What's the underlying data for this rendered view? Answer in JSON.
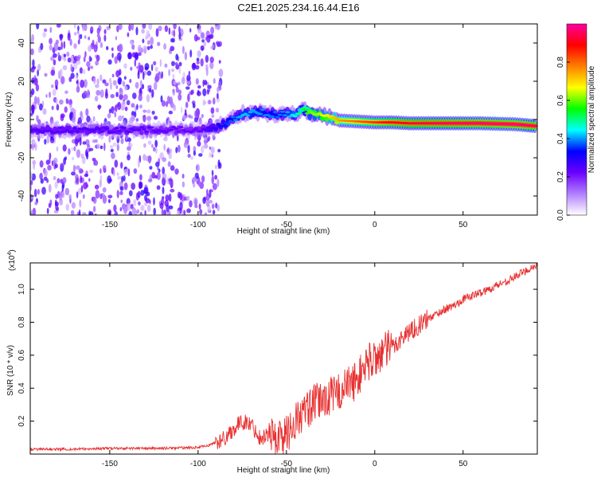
{
  "chart_data": [
    {
      "type": "heatmap",
      "title": "C2E1.2025.234.16.44.E16",
      "xlabel": "Height of straight line (km)",
      "ylabel": "Frequency (Hz)",
      "xlim": [
        -195,
        92
      ],
      "ylim": [
        -50,
        50
      ],
      "xticks": [
        -150,
        -100,
        -50,
        0,
        50
      ],
      "xtick_labels": [
        "-150",
        "-100",
        "-50",
        "0",
        "50"
      ],
      "yticks": [
        -40,
        -20,
        0,
        20,
        40
      ],
      "ytick_labels": [
        "-40",
        "-20",
        "0",
        "20",
        "40"
      ],
      "colorbar": {
        "label": "Normalized spectral amplitude",
        "range": [
          0,
          1
        ],
        "ticks": [
          0.0,
          0.2,
          0.4,
          0.6,
          0.8
        ],
        "tick_labels": [
          "0.0",
          "0.2",
          "0.4",
          "0.6",
          "0.8"
        ],
        "colors": [
          "#ffffff",
          "#b27fff",
          "#6b00ff",
          "#0000ff",
          "#00ffff",
          "#00ff00",
          "#ffff00",
          "#ff7f00",
          "#ff0000",
          "#ff00a0"
        ]
      },
      "ridge": {
        "x": [
          -195,
          -150,
          -100,
          -90,
          -85,
          -75,
          -65,
          -55,
          -50,
          -45,
          -40,
          -37,
          -30,
          -20,
          -10,
          0,
          10,
          20,
          40,
          60,
          80,
          92
        ],
        "frequency_hz": [
          -5.5,
          -5.5,
          -5.5,
          -4.5,
          -2,
          3,
          4,
          2.5,
          3,
          2.5,
          5.5,
          3,
          2,
          -0.5,
          -1,
          -1.5,
          -1.5,
          -2,
          -2,
          -2,
          -2.5,
          -3.5
        ],
        "amplitude": [
          0.25,
          0.25,
          0.22,
          0.3,
          0.35,
          0.42,
          0.4,
          0.38,
          0.4,
          0.45,
          0.55,
          0.6,
          0.65,
          0.75,
          0.8,
          0.85,
          0.9,
          0.92,
          0.95,
          0.97,
          0.98,
          0.95
        ]
      },
      "noise": {
        "x_range": [
          -195,
          -87
        ],
        "frequency_range": [
          -50,
          50
        ],
        "amplitude_range": [
          0.05,
          0.3
        ]
      }
    },
    {
      "type": "line",
      "xlabel": "Height of straight line (km)",
      "ylabel": "SNR (10 * v/v)",
      "y_multiplier_label": "(x10",
      "y_multiplier_exponent": "4",
      "y_multiplier_close": ")",
      "xlim": [
        -195,
        92
      ],
      "ylim": [
        0,
        1.16
      ],
      "xticks": [
        -150,
        -100,
        -50,
        0,
        50
      ],
      "xtick_labels": [
        "-150",
        "-100",
        "-50",
        "0",
        "50"
      ],
      "yticks": [
        0.2,
        0.4,
        0.6,
        0.8,
        1.0
      ],
      "ytick_labels": [
        "0.2",
        "0.4",
        "0.6",
        "0.8",
        "1.0"
      ],
      "color": "#e83030",
      "series": [
        {
          "name": "SNR",
          "x": [
            -195,
            -170,
            -150,
            -120,
            -100,
            -95,
            -90,
            -87,
            -85,
            -80,
            -75,
            -70,
            -65,
            -60,
            -55,
            -50,
            -45,
            -40,
            -35,
            -30,
            -25,
            -20,
            -15,
            -10,
            -5,
            0,
            5,
            10,
            15,
            20,
            25,
            30,
            35,
            40,
            45,
            50,
            55,
            60,
            65,
            70,
            75,
            80,
            85,
            92
          ],
          "y": [
            0.03,
            0.03,
            0.035,
            0.035,
            0.04,
            0.05,
            0.07,
            0.08,
            0.1,
            0.15,
            0.2,
            0.18,
            0.1,
            0.12,
            0.1,
            0.12,
            0.2,
            0.25,
            0.3,
            0.33,
            0.35,
            0.38,
            0.42,
            0.45,
            0.55,
            0.58,
            0.62,
            0.65,
            0.7,
            0.75,
            0.78,
            0.82,
            0.85,
            0.88,
            0.9,
            0.94,
            0.96,
            0.98,
            1.0,
            1.03,
            1.05,
            1.08,
            1.11,
            1.15
          ]
        }
      ]
    }
  ]
}
